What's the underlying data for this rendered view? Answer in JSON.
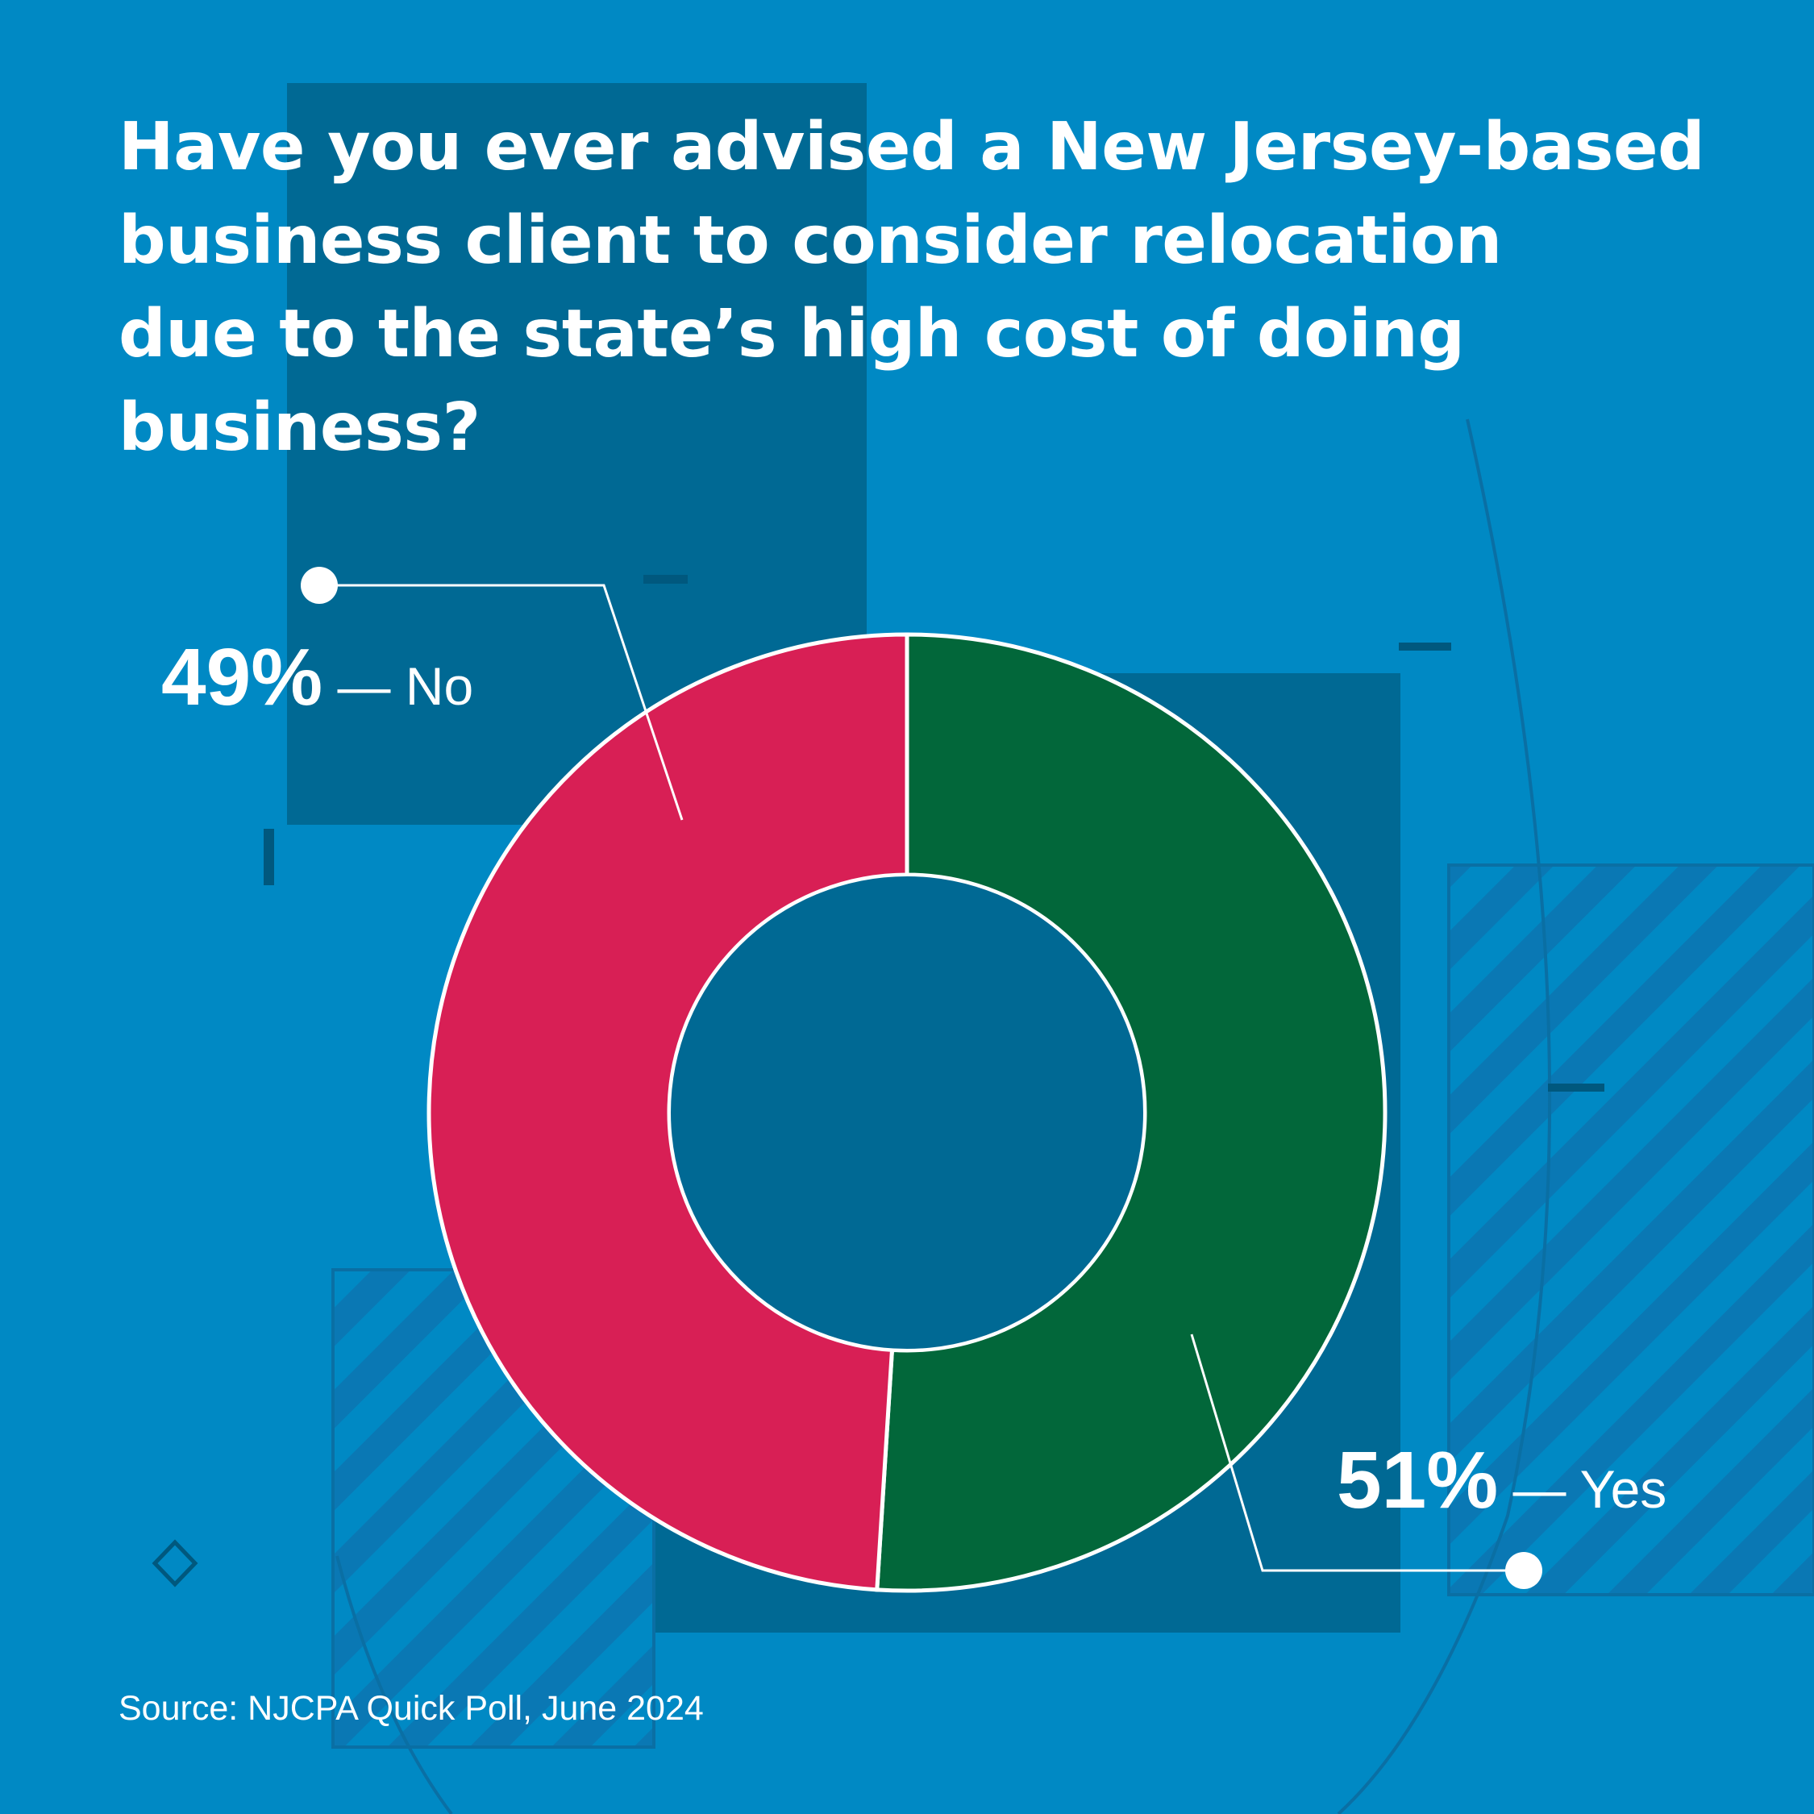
{
  "title_lines": [
    "Have you ever advised a New Jersey-based",
    "business client to consider relocation",
    "due to the state’s high cost of doing",
    "business?"
  ],
  "source": "Source: NJCPA Quick Poll, June 2024",
  "colors": {
    "background": "#0089c4",
    "panel": "#006994",
    "yes": "#02673a",
    "no": "#d81f55",
    "stroke": "#ffffff"
  },
  "chart_data": {
    "type": "pie",
    "variant": "donut",
    "title": "Have you ever advised a New Jersey-based business client to consider relocation due to the state’s high cost of doing business?",
    "slices": [
      {
        "label": "Yes",
        "value": 51,
        "value_label": "51%",
        "separator": " — ",
        "color": "#02673a"
      },
      {
        "label": "No",
        "value": 49,
        "value_label": "49%",
        "separator": " — ",
        "color": "#d81f55"
      }
    ],
    "start": "top",
    "direction": "clockwise",
    "unit": "%"
  }
}
